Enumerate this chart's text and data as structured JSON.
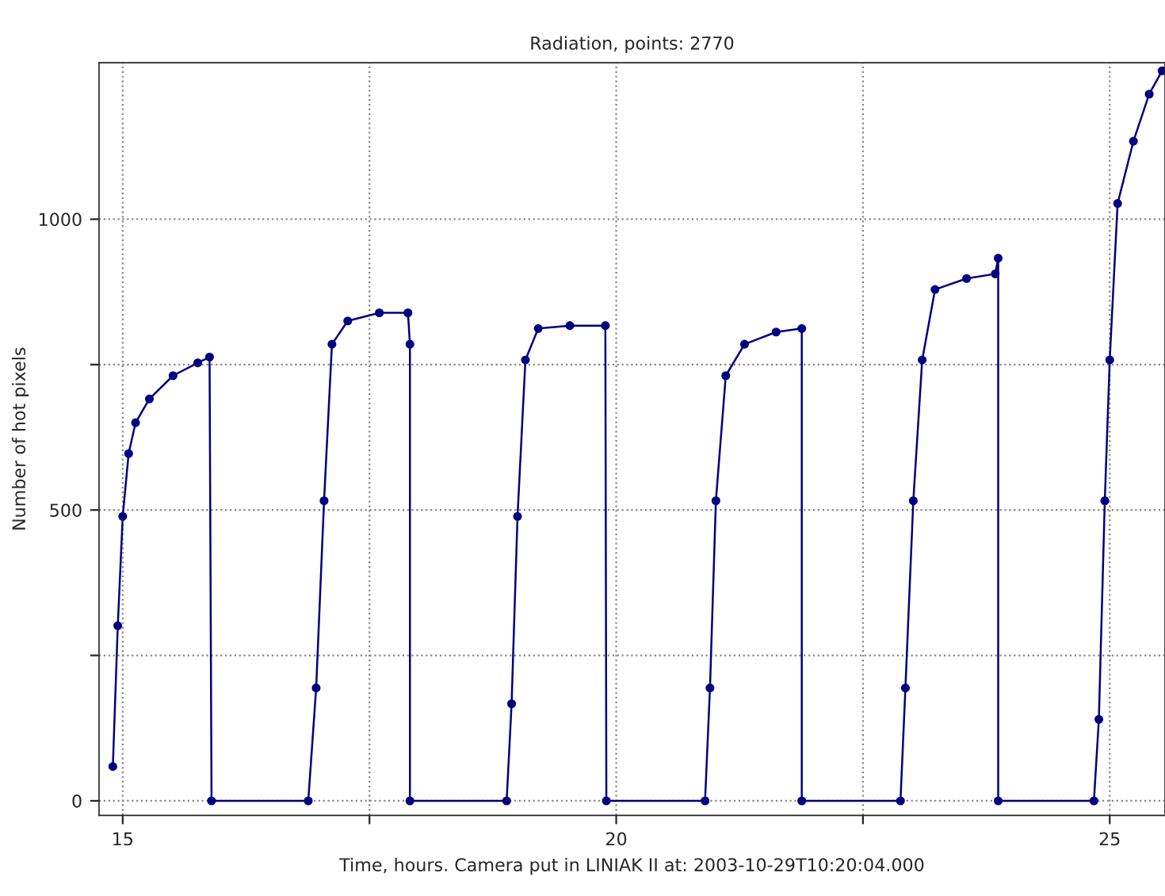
{
  "chart_data": {
    "type": "line",
    "title": "Radiation, points: 2770",
    "xlabel": "Time, hours. Camera put in LINIAK II at: 2003-10-29T10:20:04.000",
    "ylabel": "Number of hot pixels",
    "x": [
      14.9,
      14.95,
      15.0,
      15.06,
      15.13,
      15.27,
      15.51,
      15.76,
      15.88,
      15.9,
      16.88,
      16.96,
      17.04,
      17.12,
      17.28,
      17.6,
      17.89,
      17.91,
      17.91,
      18.89,
      18.94,
      19.0,
      19.08,
      19.21,
      19.53,
      19.89,
      19.9,
      20.9,
      20.95,
      21.01,
      21.11,
      21.3,
      21.62,
      21.88,
      21.88,
      22.88,
      22.93,
      23.01,
      23.1,
      23.23,
      23.55,
      23.84,
      23.87,
      23.87,
      24.84,
      24.89,
      24.95,
      25.0,
      25.08,
      25.24,
      25.4,
      25.53
    ],
    "series": [
      {
        "color": "#000080",
        "values": [
          59,
          301,
          489,
          597,
          650,
          691,
          731,
          753,
          763,
          0,
          0,
          194,
          516,
          785,
          825,
          839,
          839,
          785,
          0,
          0,
          167,
          489,
          758,
          812,
          817,
          817,
          0,
          0,
          194,
          516,
          731,
          785,
          806,
          812,
          0,
          0,
          194,
          516,
          758,
          879,
          898,
          906,
          933,
          0,
          0,
          140,
          516,
          758,
          1027,
          1134,
          1215,
          1255
        ]
      }
    ],
    "xlim": [
      14.76,
      25.56
    ],
    "ylim": [
      -25,
      1269
    ],
    "xticks": [
      15,
      {
        "value": 17.5,
        "label": null
      },
      20,
      {
        "value": 22.5,
        "label": null
      },
      25
    ],
    "yticks": [
      0,
      {
        "value": 250,
        "label": null
      },
      500,
      {
        "value": 750,
        "label": null
      },
      1000
    ],
    "grid": true,
    "marker": "circle",
    "line_style": "solid"
  }
}
